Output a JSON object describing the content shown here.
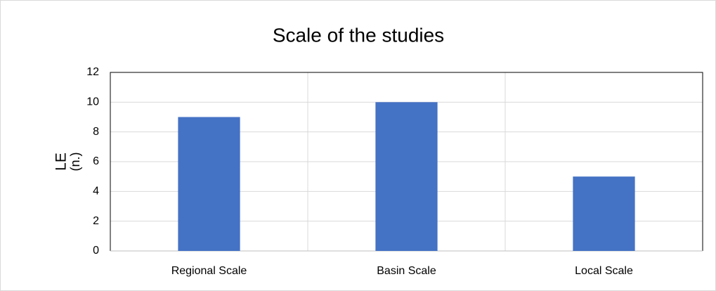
{
  "chart_data": {
    "type": "bar",
    "title": "Scale of the studies",
    "ylabel": [
      "LE",
      "(n.)"
    ],
    "categories": [
      "Regional Scale",
      "Basin Scale",
      "Local Scale"
    ],
    "values": [
      9,
      10,
      5
    ],
    "color": "#4472c4",
    "ylim": [
      0,
      12
    ],
    "yticks": [
      0,
      2,
      4,
      6,
      8,
      10,
      12
    ],
    "grid": true
  }
}
